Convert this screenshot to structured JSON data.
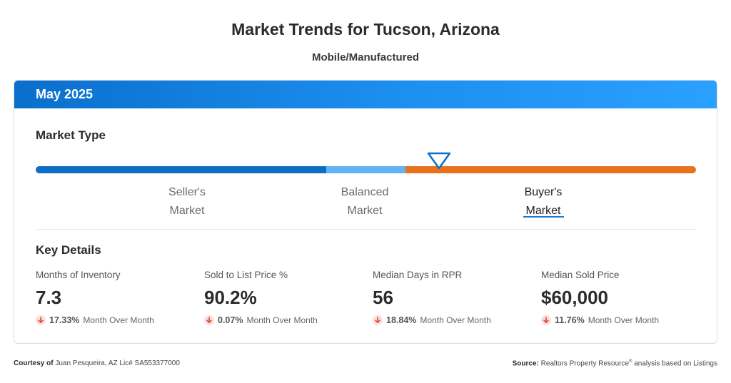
{
  "header": {
    "title": "Market Trends for Tucson, Arizona",
    "subtitle": "Mobile/Manufactured"
  },
  "card": {
    "period": "May 2025",
    "market_type": {
      "heading": "Market Type",
      "segments": [
        {
          "line1": "Seller's",
          "line2": "Market",
          "color": "#0d6ec4"
        },
        {
          "line1": "Balanced",
          "line2": "Market",
          "color": "#62b3f5"
        },
        {
          "line1": "Buyer's",
          "line2": "Market",
          "color": "#e8731c"
        }
      ],
      "selected": "Buyer's Market"
    },
    "key_details": {
      "heading": "Key Details",
      "metrics": [
        {
          "label": "Months of Inventory",
          "value": "7.3",
          "change": "17.33%",
          "period": "Month Over Month",
          "direction": "down"
        },
        {
          "label": "Sold to List Price %",
          "value": "90.2%",
          "change": "0.07%",
          "period": "Month Over Month",
          "direction": "down"
        },
        {
          "label": "Median Days in RPR",
          "value": "56",
          "change": "18.84%",
          "period": "Month Over Month",
          "direction": "down"
        },
        {
          "label": "Median Sold Price",
          "value": "$60,000",
          "change": "11.76%",
          "period": "Month Over Month",
          "direction": "down"
        }
      ]
    }
  },
  "footer": {
    "courtesy_label": "Courtesy of",
    "courtesy_text": "Juan Pesqueira, AZ Lic# SA553377000",
    "source_label": "Source:",
    "source_text": "Realtors Property Resource",
    "source_mark": "®",
    "source_tail": "analysis based on Listings"
  },
  "colors": {
    "accent": "#1579d6",
    "down_bg": "#fbe0dc",
    "down_arrow": "#d9463b"
  }
}
